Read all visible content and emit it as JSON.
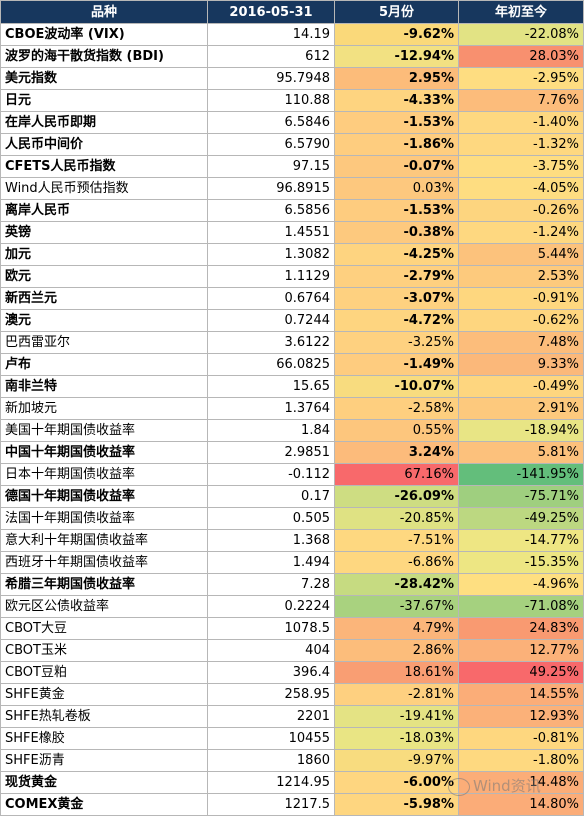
{
  "header": {
    "name": "品种",
    "date": "2016-05-31",
    "may": "5月份",
    "ytd": "年初至今"
  },
  "rows": [
    {
      "name": "CBOE波动率 (VIX)",
      "value": "14.19",
      "may": "-9.62%",
      "ytd": "-22.08%",
      "bold": true,
      "may_color": "#fad97a",
      "ytd_color": "#e2e384"
    },
    {
      "name": "波罗的海干散货指数 (BDI)",
      "value": "612",
      "may": "-12.94%",
      "ytd": "28.03%",
      "bold": true,
      "may_color": "#f2e182",
      "ytd_color": "#f8906f"
    },
    {
      "name": "美元指数",
      "value": "95.7948",
      "may": "2.95%",
      "ytd": "-2.95%",
      "bold": true,
      "may_color": "#fcbc7a",
      "ytd_color": "#fedd81"
    },
    {
      "name": "日元",
      "value": "110.88",
      "may": "-4.33%",
      "ytd": "7.76%",
      "bold": true,
      "may_color": "#fed480",
      "ytd_color": "#fcbc7b"
    },
    {
      "name": "在岸人民币即期",
      "value": "6.5846",
      "may": "-1.53%",
      "ytd": "-1.40%",
      "bold": true,
      "may_color": "#fecc7f",
      "ytd_color": "#fed880"
    },
    {
      "name": "人民币中间价",
      "value": "6.5790",
      "may": "-1.86%",
      "ytd": "-1.32%",
      "bold": true,
      "may_color": "#fecd7f",
      "ytd_color": "#fed880"
    },
    {
      "name": "CFETS人民币指数",
      "value": "97.15",
      "may": "-0.07%",
      "ytd": "-3.75%",
      "bold": true,
      "may_color": "#fdc87e",
      "ytd_color": "#fedd81"
    },
    {
      "name": "Wind人民币预估指数",
      "value": "96.8915",
      "may": "0.03%",
      "ytd": "-4.05%",
      "bold": false,
      "may_color": "#fdc87e",
      "ytd_color": "#fedd81"
    },
    {
      "name": "离岸人民币",
      "value": "6.5856",
      "may": "-1.53%",
      "ytd": "-0.26%",
      "bold": true,
      "may_color": "#fecc7f",
      "ytd_color": "#fdd57f"
    },
    {
      "name": "英镑",
      "value": "1.4551",
      "may": "-0.38%",
      "ytd": "-1.24%",
      "bold": true,
      "may_color": "#fdc97e",
      "ytd_color": "#fed880"
    },
    {
      "name": "加元",
      "value": "1.3082",
      "may": "-4.25%",
      "ytd": "5.44%",
      "bold": true,
      "may_color": "#fed480",
      "ytd_color": "#fcc27c"
    },
    {
      "name": "欧元",
      "value": "1.1129",
      "may": "-2.79%",
      "ytd": "2.53%",
      "bold": true,
      "may_color": "#fed080",
      "ytd_color": "#fdca7d"
    },
    {
      "name": "新西兰元",
      "value": "0.6764",
      "may": "-3.07%",
      "ytd": "-0.91%",
      "bold": true,
      "may_color": "#fed180",
      "ytd_color": "#fed77f"
    },
    {
      "name": "澳元",
      "value": "0.7244",
      "may": "-4.72%",
      "ytd": "-0.62%",
      "bold": true,
      "may_color": "#fed580",
      "ytd_color": "#fed67f"
    },
    {
      "name": "巴西雷亚尔",
      "value": "3.6122",
      "may": "-3.25%",
      "ytd": "7.48%",
      "bold": false,
      "may_color": "#fed180",
      "ytd_color": "#fcbd7b"
    },
    {
      "name": "卢布",
      "value": "66.0825",
      "may": "-1.49%",
      "ytd": "9.33%",
      "bold": true,
      "may_color": "#fecc7f",
      "ytd_color": "#fbb87a"
    },
    {
      "name": "南非兰特",
      "value": "15.65",
      "may": "-10.07%",
      "ytd": "-0.49%",
      "bold": true,
      "may_color": "#f8dc7f",
      "ytd_color": "#fed67f"
    },
    {
      "name": "新加坡元",
      "value": "1.3764",
      "may": "-2.58%",
      "ytd": "2.91%",
      "bold": false,
      "may_color": "#fecf7f",
      "ytd_color": "#fdc97d"
    },
    {
      "name": "美国十年期国债收益率",
      "value": "1.84",
      "may": "0.55%",
      "ytd": "-18.94%",
      "bold": false,
      "may_color": "#fdc67d",
      "ytd_color": "#e8e585"
    },
    {
      "name": "中国十年期国债收益率",
      "value": "2.9851",
      "may": "3.24%",
      "ytd": "5.81%",
      "bold": true,
      "may_color": "#fcbb7b",
      "ytd_color": "#fcc17c"
    },
    {
      "name": "日本十年期国债收益率",
      "value": "-0.112",
      "may": "67.16%",
      "ytd": "-141.95%",
      "bold": false,
      "may_color": "#f8696b",
      "ytd_color": "#63be7b"
    },
    {
      "name": "德国十年期国债收益率",
      "value": "0.17",
      "may": "-26.09%",
      "ytd": "-75.71%",
      "bold": true,
      "may_color": "#cedd82",
      "ytd_color": "#9fcf7f"
    },
    {
      "name": "法国十年期国债收益率",
      "value": "0.505",
      "may": "-20.85%",
      "ytd": "-49.25%",
      "bold": false,
      "may_color": "#dfe283",
      "ytd_color": "#bcd881"
    },
    {
      "name": "意大利十年期国债收益率",
      "value": "1.368",
      "may": "-7.51%",
      "ytd": "-14.77%",
      "bold": false,
      "may_color": "#fed880",
      "ytd_color": "#eee683"
    },
    {
      "name": "西班牙十年期国债收益率",
      "value": "1.494",
      "may": "-6.86%",
      "ytd": "-15.35%",
      "bold": false,
      "may_color": "#fed780",
      "ytd_color": "#ede683"
    },
    {
      "name": "希腊三年期国债收益率",
      "value": "7.28",
      "may": "-28.42%",
      "ytd": "-4.96%",
      "bold": true,
      "may_color": "#c6db81",
      "ytd_color": "#fedf81"
    },
    {
      "name": "欧元区公债收益率",
      "value": "0.2224",
      "may": "-37.67%",
      "ytd": "-71.08%",
      "bold": false,
      "may_color": "#a9d27f",
      "ytd_color": "#a5d17f"
    },
    {
      "name": "CBOT大豆",
      "value": "1078.5",
      "may": "4.79%",
      "ytd": "24.83%",
      "bold": false,
      "may_color": "#fbb57a",
      "ytd_color": "#f99a71"
    },
    {
      "name": "CBOT玉米",
      "value": "404",
      "may": "2.86%",
      "ytd": "12.77%",
      "bold": false,
      "may_color": "#fcbd7b",
      "ytd_color": "#fbb179"
    },
    {
      "name": "CBOT豆粕",
      "value": "396.4",
      "may": "18.61%",
      "ytd": "49.25%",
      "bold": false,
      "may_color": "#f99e73",
      "ytd_color": "#f8696b"
    },
    {
      "name": "SHFE黄金",
      "value": "258.95",
      "may": "-2.81%",
      "ytd": "14.55%",
      "bold": false,
      "may_color": "#fed080",
      "ytd_color": "#fbad78"
    },
    {
      "name": "SHFE热轧卷板",
      "value": "2201",
      "may": "-19.41%",
      "ytd": "12.93%",
      "bold": false,
      "may_color": "#e4e384",
      "ytd_color": "#fbb179"
    },
    {
      "name": "SHFE橡胶",
      "value": "10455",
      "may": "-18.03%",
      "ytd": "-0.81%",
      "bold": false,
      "may_color": "#e9e584",
      "ytd_color": "#fed77f"
    },
    {
      "name": "SHFE沥青",
      "value": "1860",
      "may": "-9.97%",
      "ytd": "-1.80%",
      "bold": false,
      "may_color": "#f8dc7f",
      "ytd_color": "#fed980"
    },
    {
      "name": "现货黄金",
      "value": "1214.95",
      "may": "-6.00%",
      "ytd": "14.48%",
      "bold": true,
      "may_color": "#fed680",
      "ytd_color": "#fbad78"
    },
    {
      "name": "COMEX黄金",
      "value": "1217.5",
      "may": "-5.98%",
      "ytd": "14.80%",
      "bold": true,
      "may_color": "#fed680",
      "ytd_color": "#fbac78"
    }
  ],
  "watermark": "Wind资讯"
}
